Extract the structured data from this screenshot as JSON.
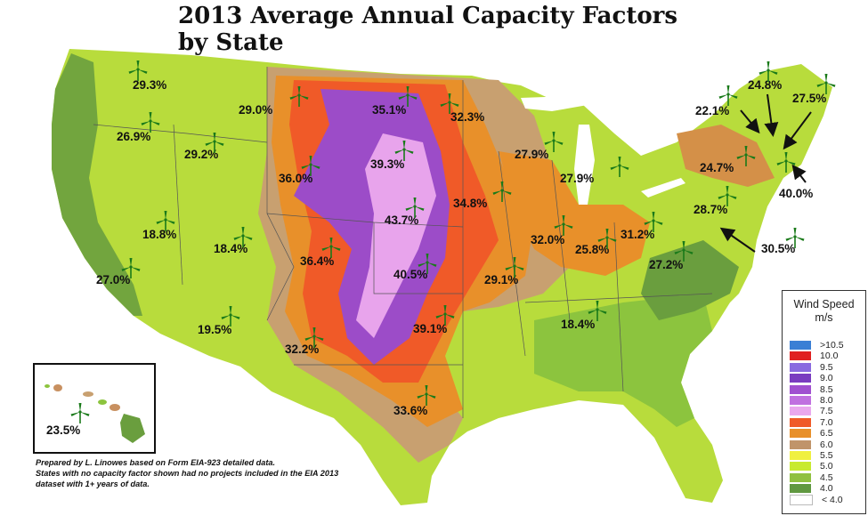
{
  "title": "2013 Average Annual Capacity Factors by State",
  "states": [
    {
      "state": "Washington",
      "value": "29.3%"
    },
    {
      "state": "Oregon",
      "value": "26.9%"
    },
    {
      "state": "Idaho",
      "value": "29.2%"
    },
    {
      "state": "Montana",
      "value": "29.0%"
    },
    {
      "state": "North Dakota",
      "value": "35.1%"
    },
    {
      "state": "Minnesota",
      "value": "32.3%"
    },
    {
      "state": "South Dakota",
      "value": "39.3%"
    },
    {
      "state": "Wyoming",
      "value": "36.0%"
    },
    {
      "state": "Wisconsin",
      "value": "27.9%"
    },
    {
      "state": "Michigan",
      "value": "27.9%"
    },
    {
      "state": "Iowa",
      "value": "34.8%"
    },
    {
      "state": "Nebraska",
      "value": "43.7%"
    },
    {
      "state": "Nevada",
      "value": "18.8%"
    },
    {
      "state": "Utah",
      "value": "18.4%"
    },
    {
      "state": "Colorado",
      "value": "36.4%"
    },
    {
      "state": "Kansas",
      "value": "40.5%"
    },
    {
      "state": "Illinois",
      "value": "32.0%"
    },
    {
      "state": "Indiana",
      "value": "25.8%"
    },
    {
      "state": "Ohio",
      "value": "31.2%"
    },
    {
      "state": "California",
      "value": "27.0%"
    },
    {
      "state": "Missouri",
      "value": "29.1%"
    },
    {
      "state": "West Virginia",
      "value": "27.2%"
    },
    {
      "state": "Pennsylvania",
      "value": "28.7%"
    },
    {
      "state": "New York",
      "value": "24.7%"
    },
    {
      "state": "Vermont",
      "value": "22.1%"
    },
    {
      "state": "New Hampshire",
      "value": "24.8%"
    },
    {
      "state": "Maine",
      "value": "27.5%"
    },
    {
      "state": "Massachusetts",
      "value": "40.0%"
    },
    {
      "state": "Maryland",
      "value": "30.5%"
    },
    {
      "state": "Arizona",
      "value": "19.5%"
    },
    {
      "state": "New Mexico",
      "value": "32.2%"
    },
    {
      "state": "Oklahoma",
      "value": "39.1%"
    },
    {
      "state": "Tennessee",
      "value": "18.4%"
    },
    {
      "state": "Texas",
      "value": "33.6%"
    },
    {
      "state": "Hawaii",
      "value": "23.5%"
    }
  ],
  "note": [
    "Prepared by L. Linowes based on Form EIA-923 detailed data.",
    "States with no capacity factor shown had no projects included in the EIA 2013",
    "dataset with 1+ years of data."
  ],
  "legend": {
    "title_line1": "Wind Speed",
    "title_line2": "m/s",
    "entries": [
      {
        "label": ">10.5",
        "color": "#3a7fd5"
      },
      {
        "label": "10.0",
        "color": "#e02020"
      },
      {
        "label": "9.5",
        "color": "#8a6ae0"
      },
      {
        "label": "9.0",
        "color": "#7a3cc0"
      },
      {
        "label": "8.5",
        "color": "#a050d0"
      },
      {
        "label": "8.0",
        "color": "#c070e0"
      },
      {
        "label": "7.5",
        "color": "#eaa8ee"
      },
      {
        "label": "7.0",
        "color": "#f05a28"
      },
      {
        "label": "6.5",
        "color": "#e8902a"
      },
      {
        "label": "6.0",
        "color": "#c0946a"
      },
      {
        "label": "5.5",
        "color": "#f0f040"
      },
      {
        "label": "5.0",
        "color": "#c8ea30"
      },
      {
        "label": "4.5",
        "color": "#90c040"
      },
      {
        "label": "4.0",
        "color": "#609840"
      },
      {
        "label": "< 4.0",
        "color": "#ffffff"
      }
    ]
  },
  "colors": {
    "low_green": "#8ec63f",
    "yellow_green": "#c8e43a",
    "orange": "#e8902a",
    "red_orange": "#f05a28",
    "purple": "#a050d0",
    "pink": "#eaa8ee",
    "tan": "#c0946a",
    "dark_green": "#5e9440",
    "turbine": "#1a7a1a"
  }
}
